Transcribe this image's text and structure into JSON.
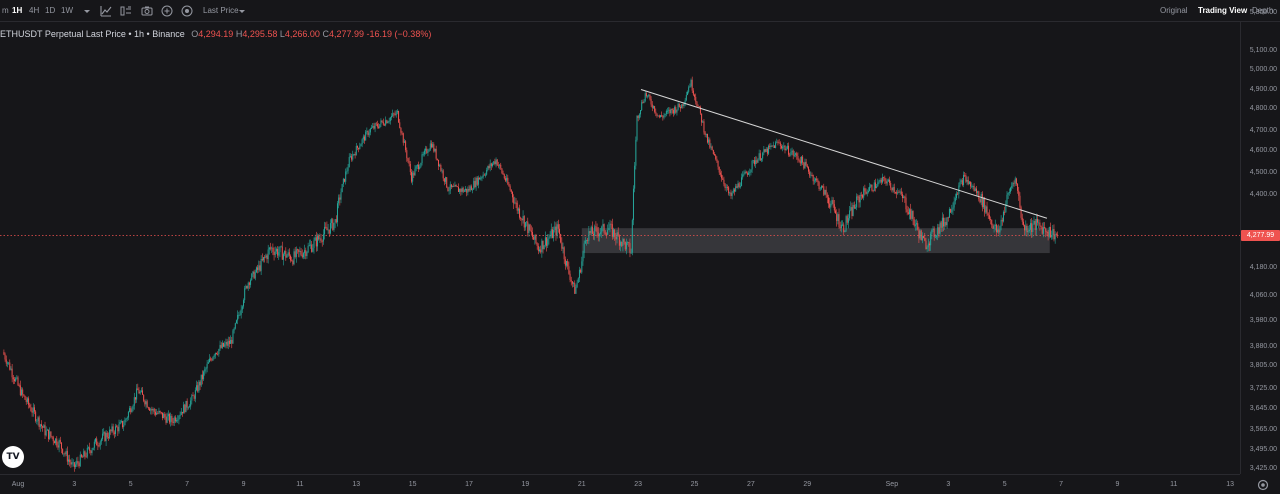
{
  "toolbar": {
    "intervals": [
      {
        "label": "m",
        "active": false
      },
      {
        "label": "1H",
        "active": true
      },
      {
        "label": "4H",
        "active": false
      },
      {
        "label": "1D",
        "active": false
      },
      {
        "label": "1W",
        "active": false
      }
    ],
    "price_type": "Last Price",
    "view_tabs": [
      {
        "label": "Original",
        "active": false
      },
      {
        "label": "Trading View",
        "active": true
      },
      {
        "label": "Depth",
        "active": false
      }
    ]
  },
  "legend": {
    "symbol": "ETHUSDT Perpetual Last Price • 1h • Binance",
    "open_label": "O",
    "open": "4,294.19",
    "high_label": "H",
    "high": "4,295.58",
    "low_label": "L",
    "low": "4,266.00",
    "close_label": "C",
    "close": "4,277.99",
    "change": "-16.19 (−0.38%)"
  },
  "current_price": "4,277.99",
  "logo_text": "TV",
  "colors": {
    "up": "#26a69a",
    "down": "#ef5350",
    "trendline": "#d6d6d6",
    "zone": "#3a3a3e"
  },
  "chart_data": {
    "type": "candlestick",
    "y_ticks": [
      "5,300.00",
      "5,100.00",
      "5,000.00",
      "4,900.00",
      "4,800.00",
      "4,700.00",
      "4,600.00",
      "4,500.00",
      "4,400.00",
      "4,180.00",
      "4,060.00",
      "3,980.00",
      "3,880.00",
      "3,805.00",
      "3,725.00",
      "3,645.00",
      "3,565.00",
      "3,495.00",
      "3,425.00"
    ],
    "y_tick_values": [
      5300,
      5100,
      5000,
      4900,
      4800,
      4700,
      4600,
      4500,
      4400,
      4180,
      4060,
      3980,
      3880,
      3805,
      3725,
      3645,
      3565,
      3495,
      3425
    ],
    "x_ticks": [
      "Aug",
      "3",
      "5",
      "7",
      "9",
      "11",
      "13",
      "15",
      "17",
      "19",
      "21",
      "23",
      "25",
      "27",
      "29",
      "Sep",
      "3",
      "5",
      "7",
      "9",
      "11",
      "13"
    ],
    "x_tick_days": [
      1,
      3,
      5,
      7,
      9,
      11,
      13,
      15,
      17,
      19,
      21,
      23,
      25,
      27,
      29,
      32,
      34,
      36,
      38,
      40,
      42,
      44
    ],
    "day_axis": {
      "first_day": 1,
      "last_day": 44
    },
    "price_path": [
      {
        "day": 0.5,
        "price": 3860
      },
      {
        "day": 1.2,
        "price": 3700
      },
      {
        "day": 2.0,
        "price": 3560
      },
      {
        "day": 2.5,
        "price": 3520
      },
      {
        "day": 3.0,
        "price": 3430
      },
      {
        "day": 3.8,
        "price": 3520
      },
      {
        "day": 4.8,
        "price": 3590
      },
      {
        "day": 5.3,
        "price": 3720
      },
      {
        "day": 5.8,
        "price": 3640
      },
      {
        "day": 6.5,
        "price": 3600
      },
      {
        "day": 7.2,
        "price": 3680
      },
      {
        "day": 8.0,
        "price": 3860
      },
      {
        "day": 8.6,
        "price": 3900
      },
      {
        "day": 9.2,
        "price": 4120
      },
      {
        "day": 10.0,
        "price": 4240
      },
      {
        "day": 10.8,
        "price": 4210
      },
      {
        "day": 11.5,
        "price": 4250
      },
      {
        "day": 12.3,
        "price": 4320
      },
      {
        "day": 12.8,
        "price": 4560
      },
      {
        "day": 13.5,
        "price": 4700
      },
      {
        "day": 14.5,
        "price": 4780
      },
      {
        "day": 15.0,
        "price": 4480
      },
      {
        "day": 15.7,
        "price": 4640
      },
      {
        "day": 16.3,
        "price": 4430
      },
      {
        "day": 17.0,
        "price": 4420
      },
      {
        "day": 18.0,
        "price": 4560
      },
      {
        "day": 18.7,
        "price": 4370
      },
      {
        "day": 19.5,
        "price": 4240
      },
      {
        "day": 20.2,
        "price": 4300
      },
      {
        "day": 20.8,
        "price": 4080
      },
      {
        "day": 21.2,
        "price": 4280
      },
      {
        "day": 22.0,
        "price": 4300
      },
      {
        "day": 22.8,
        "price": 4230
      },
      {
        "day": 23.0,
        "price": 4760
      },
      {
        "day": 23.3,
        "price": 4880
      },
      {
        "day": 23.8,
        "price": 4760
      },
      {
        "day": 24.6,
        "price": 4820
      },
      {
        "day": 24.9,
        "price": 4940
      },
      {
        "day": 25.5,
        "price": 4650
      },
      {
        "day": 26.3,
        "price": 4390
      },
      {
        "day": 27.2,
        "price": 4560
      },
      {
        "day": 28.0,
        "price": 4640
      },
      {
        "day": 28.8,
        "price": 4560
      },
      {
        "day": 29.6,
        "price": 4420
      },
      {
        "day": 30.3,
        "price": 4300
      },
      {
        "day": 31.0,
        "price": 4410
      },
      {
        "day": 31.8,
        "price": 4470
      },
      {
        "day": 32.5,
        "price": 4380
      },
      {
        "day": 33.2,
        "price": 4250
      },
      {
        "day": 34.0,
        "price": 4330
      },
      {
        "day": 34.6,
        "price": 4480
      },
      {
        "day": 35.2,
        "price": 4390
      },
      {
        "day": 35.8,
        "price": 4280
      },
      {
        "day": 36.4,
        "price": 4480
      },
      {
        "day": 36.7,
        "price": 4300
      },
      {
        "day": 37.2,
        "price": 4310
      },
      {
        "day": 37.9,
        "price": 4278
      }
    ],
    "trendline": [
      {
        "day": 23.1,
        "price": 4900
      },
      {
        "day": 37.5,
        "price": 4330
      }
    ],
    "support_zone": {
      "day_start": 21.0,
      "day_end": 37.6,
      "price_low": 4225,
      "price_high": 4300
    },
    "last_price": 4277.99,
    "grid": false,
    "legend_position": "top-left"
  }
}
